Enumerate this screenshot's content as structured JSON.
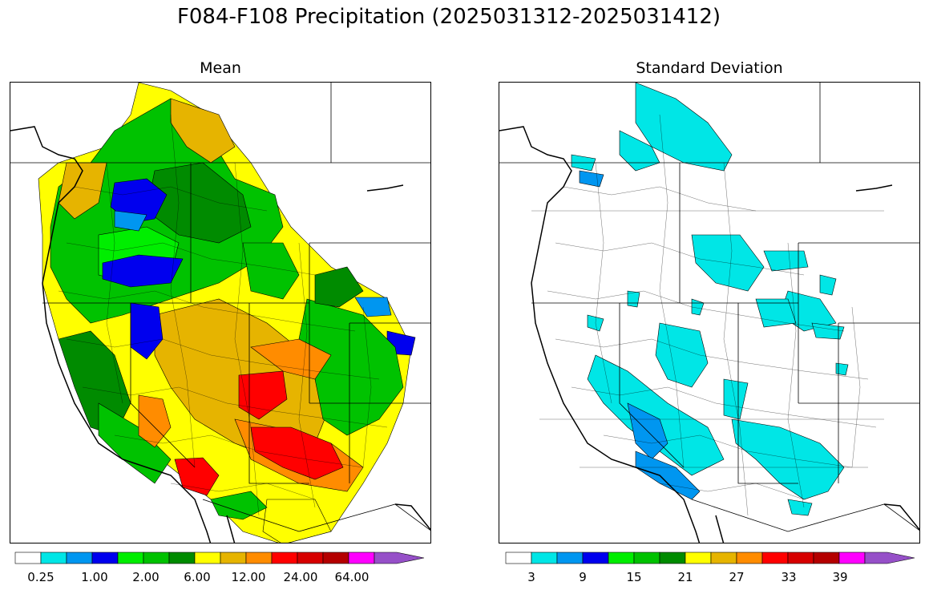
{
  "figure": {
    "title": "F084-F108 Precipitation (2025031312-2025031412)"
  },
  "panels": [
    {
      "id": "mean",
      "title": "Mean",
      "colorbar": {
        "colors": [
          "#ffffff",
          "#00e6e6",
          "#0096f0",
          "#0000ee",
          "#00ee00",
          "#00c200",
          "#008b00",
          "#ffff00",
          "#e6b400",
          "#ff8c00",
          "#ff0000",
          "#d70000",
          "#b40000",
          "#ff00ff",
          "#9650c8"
        ],
        "tick_labels": [
          "0.25",
          "1.00",
          "2.00",
          "6.00",
          "12.00",
          "24.00",
          "64.00"
        ],
        "extend": "max"
      }
    },
    {
      "id": "stddev",
      "title": "Standard Deviation",
      "colorbar": {
        "colors": [
          "#ffffff",
          "#00e6e6",
          "#0096f0",
          "#0000ee",
          "#00ee00",
          "#00c200",
          "#008b00",
          "#ffff00",
          "#e6b400",
          "#ff8c00",
          "#ff0000",
          "#d70000",
          "#b40000",
          "#ff00ff",
          "#9650c8"
        ],
        "tick_labels": [
          "3",
          "9",
          "15",
          "21",
          "27",
          "33",
          "39"
        ],
        "extend": "max"
      }
    }
  ]
}
